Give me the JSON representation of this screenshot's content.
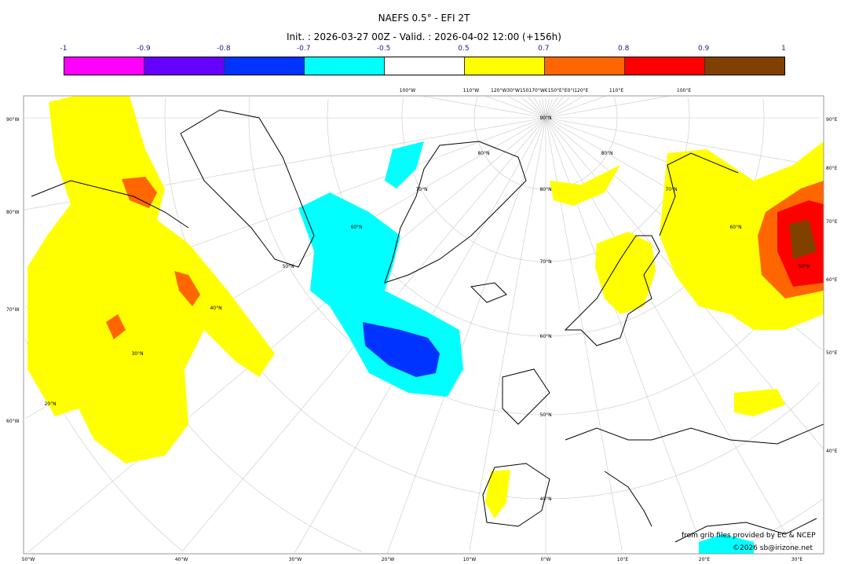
{
  "title": "NAEFS 0.5° - EFI 2T",
  "subtitle": "Init. : 2026-03-27 00Z - Valid. : 2026-04-02 12:00 (+156h)",
  "colorbar": {
    "ticks": [
      "-1",
      "-0.9",
      "-0.8",
      "-0.7",
      "-0.5",
      "0.5",
      "0.7",
      "0.8",
      "0.9",
      "1"
    ],
    "colors": [
      "#ff00ff",
      "#6600ff",
      "#0033ff",
      "#00ffff",
      "#ffffff",
      "#ffff00",
      "#ff6600",
      "#ff0000",
      "#804000"
    ]
  },
  "map": {
    "left_labels": [
      "90°W",
      "80°W",
      "70°W",
      "60°W"
    ],
    "right_labels": [
      "90°E",
      "80°E",
      "70°E",
      "60°E",
      "50°E",
      "40°E"
    ],
    "bottom_labels": [
      "50°W",
      "40°W",
      "30°W",
      "20°W",
      "10°W",
      "0°W",
      "10°E",
      "20°E",
      "30°E"
    ],
    "top_labels": [
      "100°W",
      "110°W",
      "120°W30°W150170°W€150°E°E0°I120°E",
      "110°E",
      "100°E"
    ],
    "lat_labels": [
      "90°N",
      "80°N",
      "70°N",
      "60°N",
      "50°N",
      "40°N",
      "30°N",
      "20°N",
      "80°N",
      "70°N",
      "60°N",
      "50°N",
      "40°N",
      "80°N",
      "70°N",
      "60°N",
      "50°N"
    ]
  },
  "credits": {
    "source": "from grib files provided by EC & NCEP",
    "copyright": "©2026 sb@irizone.net"
  }
}
